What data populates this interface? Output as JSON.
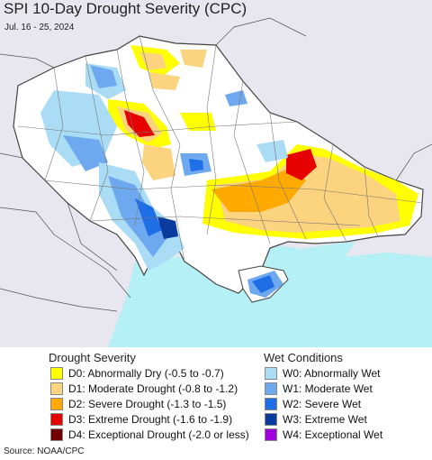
{
  "header": {
    "title": "SPI 10-Day Drought Severity (CPC)",
    "subtitle": "Jul. 16 - 25, 2024"
  },
  "legend": {
    "drought": {
      "title": "Drought Severity",
      "items": [
        {
          "label": "D0: Abnormally Dry (-0.5 to -0.7)",
          "color": "#ffff00"
        },
        {
          "label": "D1: Moderate Drought (-0.8 to -1.2)",
          "color": "#fcd37f"
        },
        {
          "label": "D2: Severe Drought (-1.3 to -1.5)",
          "color": "#ffaa00"
        },
        {
          "label": "D3: Extreme Drought (-1.6 to -1.9)",
          "color": "#e60000"
        },
        {
          "label": "D4: Exceptional Drought (-2.0 or less)",
          "color": "#730000"
        }
      ]
    },
    "wet": {
      "title": "Wet Conditions",
      "items": [
        {
          "label": "W0: Abnormally Wet",
          "color": "#aadcf5"
        },
        {
          "label": "W1: Moderate Wet",
          "color": "#6ea8ef"
        },
        {
          "label": "W2: Severe Wet",
          "color": "#1e6ee6"
        },
        {
          "label": "W3: Extreme Wet",
          "color": "#0a3ca0"
        },
        {
          "label": "W4: Exceptional Wet",
          "color": "#a000dc"
        }
      ]
    }
  },
  "map": {
    "colors": {
      "outside": "#e8e6ee",
      "land": "#ffffff",
      "sea": "#b4f0f5",
      "border": "#444444"
    }
  },
  "footer": {
    "source": "Source: NOAA/CPC"
  }
}
